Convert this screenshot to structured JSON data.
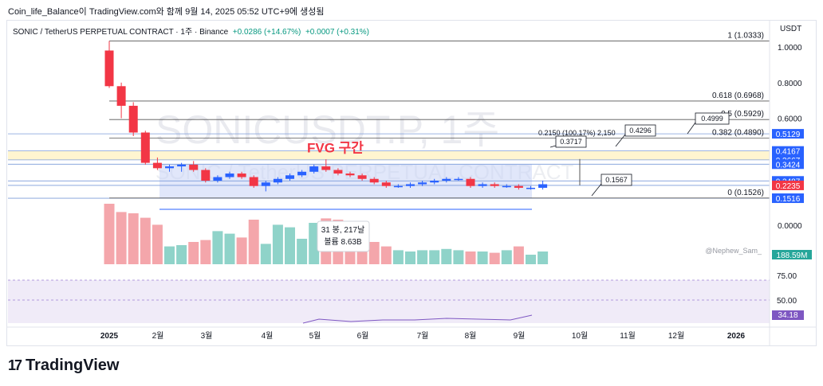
{
  "caption": "Coin_life_Balance이 TradingView.com와 함께 9월 14, 2025 05:52 UTC+9에 생성됨",
  "symbol": {
    "name": "SONIC / TetherUS PERPETUAL CONTRACT · 1주 · Binance",
    "change": "+0.0286 (+14.67%)",
    "change2": "+0.0007 (+0.31%)"
  },
  "currency": "USDT",
  "watermark": "SONICUSDT.P, 1주",
  "watermark2": "SONIC / TetherUS PERPETUAL CONTRACT",
  "fvg_label": "FVG 구간",
  "brand": "TradingView",
  "chart_data": {
    "type": "candlestick",
    "x_ticks": [
      "2025",
      "2월",
      "3월",
      "4월",
      "5월",
      "6월",
      "7월",
      "8월",
      "9월",
      "10월",
      "11월",
      "12월",
      "2026"
    ],
    "y_ticks": [
      "1.0000",
      "0.8000",
      "0.6000",
      "0.0000"
    ],
    "price_range": [
      0.0,
      1.03
    ],
    "candles": [
      {
        "o": 0.98,
        "h": 1.0333,
        "l": 0.77,
        "c": 0.78
      },
      {
        "o": 0.78,
        "h": 0.8,
        "l": 0.6,
        "c": 0.67
      },
      {
        "o": 0.67,
        "h": 0.69,
        "l": 0.5,
        "c": 0.52
      },
      {
        "o": 0.52,
        "h": 0.53,
        "l": 0.34,
        "c": 0.35
      },
      {
        "o": 0.35,
        "h": 0.38,
        "l": 0.31,
        "c": 0.32
      },
      {
        "o": 0.32,
        "h": 0.34,
        "l": 0.3,
        "c": 0.33
      },
      {
        "o": 0.33,
        "h": 0.35,
        "l": 0.3,
        "c": 0.34
      },
      {
        "o": 0.34,
        "h": 0.36,
        "l": 0.3,
        "c": 0.31
      },
      {
        "o": 0.31,
        "h": 0.32,
        "l": 0.24,
        "c": 0.25
      },
      {
        "o": 0.25,
        "h": 0.28,
        "l": 0.24,
        "c": 0.27
      },
      {
        "o": 0.27,
        "h": 0.3,
        "l": 0.26,
        "c": 0.29
      },
      {
        "o": 0.29,
        "h": 0.3,
        "l": 0.26,
        "c": 0.27
      },
      {
        "o": 0.27,
        "h": 0.28,
        "l": 0.21,
        "c": 0.22
      },
      {
        "o": 0.22,
        "h": 0.25,
        "l": 0.19,
        "c": 0.24
      },
      {
        "o": 0.24,
        "h": 0.27,
        "l": 0.23,
        "c": 0.26
      },
      {
        "o": 0.26,
        "h": 0.29,
        "l": 0.25,
        "c": 0.28
      },
      {
        "o": 0.28,
        "h": 0.31,
        "l": 0.27,
        "c": 0.3
      },
      {
        "o": 0.3,
        "h": 0.34,
        "l": 0.29,
        "c": 0.33
      },
      {
        "o": 0.33,
        "h": 0.37,
        "l": 0.3,
        "c": 0.31
      },
      {
        "o": 0.31,
        "h": 0.32,
        "l": 0.28,
        "c": 0.29
      },
      {
        "o": 0.29,
        "h": 0.3,
        "l": 0.27,
        "c": 0.28
      },
      {
        "o": 0.28,
        "h": 0.29,
        "l": 0.25,
        "c": 0.26
      },
      {
        "o": 0.26,
        "h": 0.27,
        "l": 0.23,
        "c": 0.24
      },
      {
        "o": 0.24,
        "h": 0.25,
        "l": 0.21,
        "c": 0.22
      },
      {
        "o": 0.22,
        "h": 0.23,
        "l": 0.21,
        "c": 0.22
      },
      {
        "o": 0.22,
        "h": 0.24,
        "l": 0.21,
        "c": 0.23
      },
      {
        "o": 0.23,
        "h": 0.25,
        "l": 0.22,
        "c": 0.24
      },
      {
        "o": 0.24,
        "h": 0.26,
        "l": 0.23,
        "c": 0.25
      },
      {
        "o": 0.25,
        "h": 0.27,
        "l": 0.24,
        "c": 0.26
      },
      {
        "o": 0.26,
        "h": 0.27,
        "l": 0.25,
        "c": 0.26
      },
      {
        "o": 0.26,
        "h": 0.27,
        "l": 0.21,
        "c": 0.22
      },
      {
        "o": 0.22,
        "h": 0.24,
        "l": 0.21,
        "c": 0.23
      },
      {
        "o": 0.23,
        "h": 0.24,
        "l": 0.21,
        "c": 0.22
      },
      {
        "o": 0.22,
        "h": 0.23,
        "l": 0.21,
        "c": 0.22
      },
      {
        "o": 0.22,
        "h": 0.23,
        "l": 0.2,
        "c": 0.21
      },
      {
        "o": 0.21,
        "h": 0.22,
        "l": 0.2,
        "c": 0.21
      },
      {
        "o": 0.21,
        "h": 0.25,
        "l": 0.2,
        "c": 0.23
      }
    ],
    "volume_label": "188.59M",
    "volumes": [
      95,
      82,
      80,
      73,
      62,
      28,
      30,
      35,
      38,
      52,
      48,
      42,
      70,
      32,
      62,
      58,
      40,
      65,
      72,
      70,
      60,
      48,
      35,
      28,
      22,
      20,
      22,
      22,
      24,
      22,
      20,
      20,
      18,
      22,
      28,
      15,
      20
    ],
    "fib_levels": [
      {
        "label": "1 (1.0333)",
        "value": 1.0333
      },
      {
        "label": "0.618 (0.6968)",
        "value": 0.6968
      },
      {
        "label": "0.5 (0.5929)",
        "value": 0.5929
      },
      {
        "label": "0.382 (0.4890)",
        "value": 0.489
      },
      {
        "label": "0 (0.1526)",
        "value": 0.1526
      }
    ],
    "price_labels": [
      {
        "text": "0.5129",
        "value": 0.5129,
        "color": "#2962ff"
      },
      {
        "text": "0.4167",
        "value": 0.4167,
        "color": "#2962ff"
      },
      {
        "text": "0.3667",
        "value": 0.3667,
        "color": "#2962ff"
      },
      {
        "text": "0.3424",
        "value": 0.3424,
        "color": "#2962ff"
      },
      {
        "text": "0.2487",
        "value": 0.2487,
        "color": "#2962ff"
      },
      {
        "text": "0.2235",
        "value": 0.2235,
        "color": "#f23645"
      },
      {
        "text": "0.1516",
        "value": 0.1516,
        "color": "#2962ff"
      }
    ],
    "callouts": [
      {
        "text": "0.4999"
      },
      {
        "text": "0.4296"
      },
      {
        "text": "0.3717"
      },
      {
        "text": "0.1567"
      }
    ],
    "measure_text": "0.2150 (100.17%) 2,150",
    "range_text1": "31 봉, 217날",
    "range_text2": "볼륨 8.63B",
    "watermark_small": "@Nephew_Sam_",
    "rsi_ticks": [
      "75.00",
      "50.00"
    ],
    "rsi_value": "34.18"
  }
}
